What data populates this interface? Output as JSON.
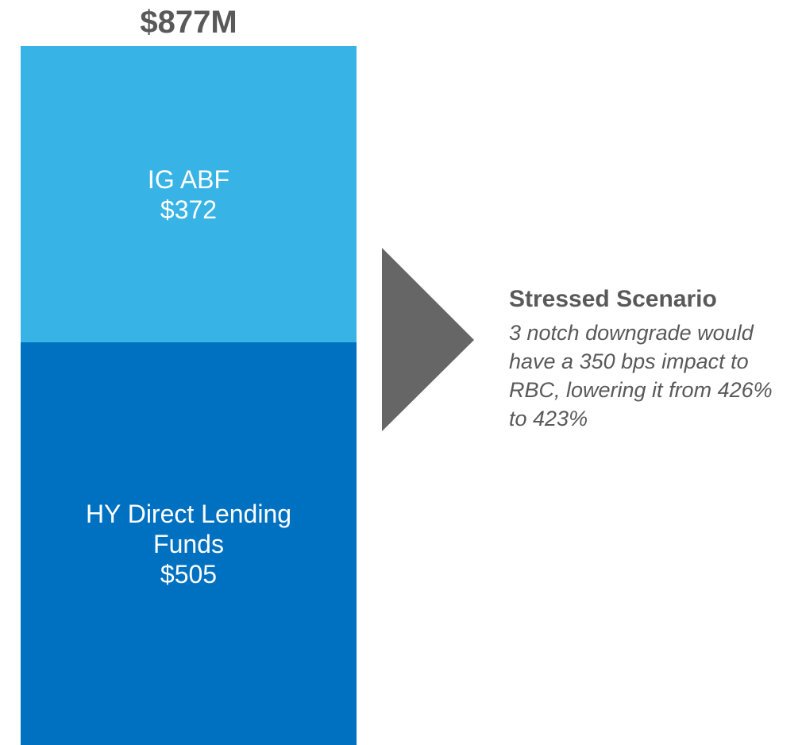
{
  "chart_data": {
    "type": "stacked_bar",
    "total_label": "$877M",
    "series": [
      {
        "name": "IG ABF",
        "color": "#38b3e6",
        "values": [
          372
        ],
        "value_labels": [
          "$372"
        ]
      },
      {
        "name": "HY Direct Lending Funds",
        "color": "#0071c1",
        "values": [
          505
        ],
        "value_labels": [
          "$505"
        ]
      }
    ],
    "annotation": {
      "title": "Stressed Scenario",
      "text": "3 notch downgrade would have a 350 bps impact to RBC, lowering it from 426% to 423%"
    }
  }
}
